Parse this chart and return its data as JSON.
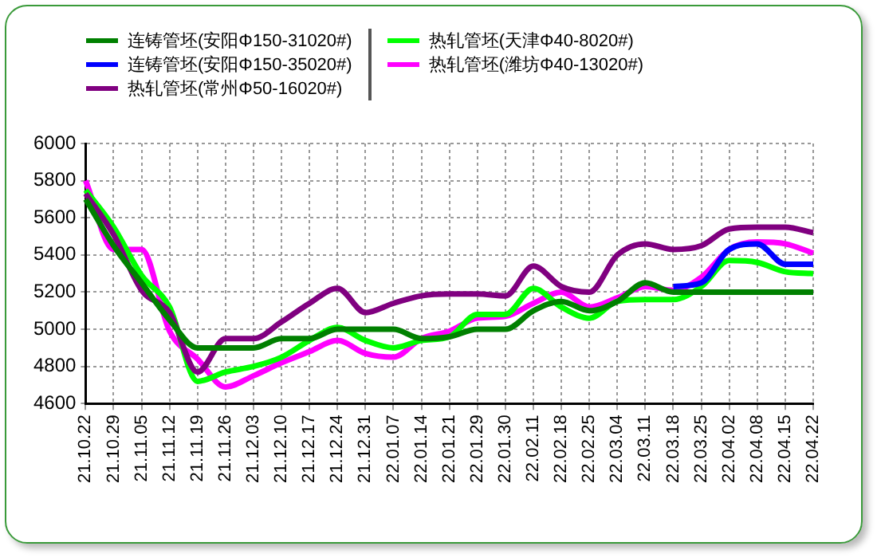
{
  "chart_data": {
    "type": "line",
    "categories": [
      "21.10.22",
      "21.10.29",
      "21.11.05",
      "21.11.12",
      "21.11.19",
      "21.11.26",
      "21.12.03",
      "21.12.10",
      "21.12.17",
      "21.12.24",
      "21.12.31",
      "22.01.07",
      "22.01.14",
      "22.01.21",
      "22.01.29",
      "22.01.30",
      "22.02.11",
      "22.02.18",
      "22.02.25",
      "22.03.04",
      "22.03.11",
      "22.03.18",
      "22.03.25",
      "22.04.02",
      "22.04.08",
      "22.04.15",
      "22.04.22"
    ],
    "series": [
      {
        "name": "连铸管坯(安阳Φ150-31020#)",
        "color": "#008000",
        "values": [
          5700,
          5450,
          5250,
          5050,
          4900,
          4900,
          4900,
          4950,
          4950,
          5000,
          5000,
          5000,
          4950,
          4960,
          5000,
          5000,
          5100,
          5150,
          5100,
          5150,
          5250,
          5200,
          5200,
          5200,
          5200,
          5200,
          5200
        ]
      },
      {
        "name": "连铸管坯(安阳Φ150-35020#)",
        "color": "#0000ff",
        "values": [
          null,
          null,
          null,
          null,
          null,
          null,
          null,
          null,
          null,
          null,
          null,
          null,
          null,
          null,
          null,
          null,
          null,
          null,
          null,
          null,
          null,
          5230,
          5250,
          5430,
          5460,
          5350,
          5350
        ]
      },
      {
        "name": "热轧管坯(常州Φ50-16020#)",
        "color": "#800080",
        "values": [
          5730,
          5510,
          5210,
          5090,
          4770,
          4950,
          4950,
          5040,
          5140,
          5220,
          5090,
          5140,
          5180,
          5190,
          5190,
          5180,
          5340,
          5230,
          5200,
          5400,
          5460,
          5430,
          5450,
          5540,
          5550,
          5550,
          5520
        ]
      },
      {
        "name": "热轧管坯(天津Φ40-8020#)",
        "color": "#00ff00",
        "values": [
          5750,
          5550,
          5290,
          5120,
          4720,
          4770,
          4800,
          4850,
          4940,
          5010,
          4940,
          4900,
          4940,
          4960,
          5080,
          5080,
          5220,
          5120,
          5060,
          5150,
          5160,
          5160,
          5230,
          5370,
          5360,
          5310,
          5300
        ]
      },
      {
        "name": "热轧管坯(潍坊Φ40-13020#)",
        "color": "#ff00ff",
        "values": [
          5800,
          5430,
          5430,
          4990,
          4840,
          4690,
          4750,
          4820,
          4880,
          4940,
          4870,
          4850,
          4950,
          4990,
          5060,
          5070,
          5140,
          5200,
          5120,
          5170,
          5230,
          5210,
          5280,
          5430,
          5470,
          5460,
          5410
        ]
      }
    ],
    "ylim": [
      4600,
      6000
    ],
    "yticks": [
      4600,
      4800,
      5000,
      5200,
      5400,
      5600,
      5800,
      6000
    ],
    "grid": true,
    "legend": "top",
    "marker": "none",
    "line_style": "solid"
  }
}
